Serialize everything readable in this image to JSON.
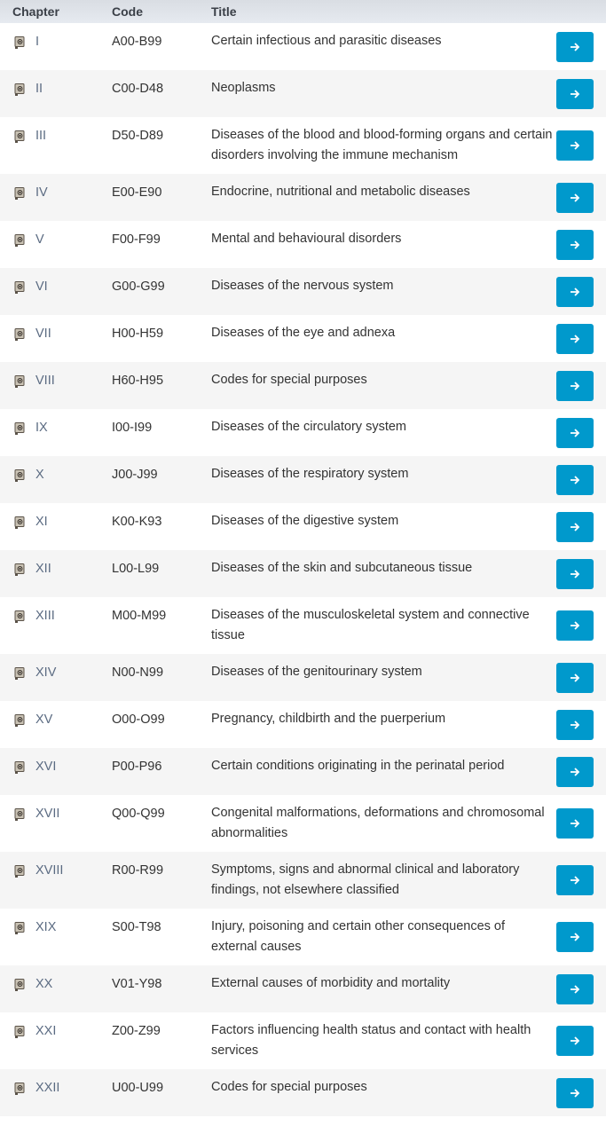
{
  "header": {
    "chapter": "Chapter",
    "code": "Code",
    "title": "Title"
  },
  "colors": {
    "button": "#0099cc",
    "chapter_text": "#5b6b82"
  },
  "rows": [
    {
      "chapter": "I",
      "code": "A00-B99",
      "title": "Certain infectious and parasitic diseases"
    },
    {
      "chapter": "II",
      "code": "C00-D48",
      "title": "Neoplasms"
    },
    {
      "chapter": "III",
      "code": "D50-D89",
      "title": "Diseases of the blood and blood-forming organs and certain disorders involving the immune mechanism"
    },
    {
      "chapter": "IV",
      "code": "E00-E90",
      "title": "Endocrine, nutritional and metabolic diseases"
    },
    {
      "chapter": "V",
      "code": "F00-F99",
      "title": "Mental and behavioural disorders"
    },
    {
      "chapter": "VI",
      "code": "G00-G99",
      "title": "Diseases of the nervous system"
    },
    {
      "chapter": "VII",
      "code": "H00-H59",
      "title": "Diseases of the eye and adnexa"
    },
    {
      "chapter": "VIII",
      "code": "H60-H95",
      "title": "Codes for special purposes"
    },
    {
      "chapter": "IX",
      "code": "I00-I99",
      "title": "Diseases of the circulatory system"
    },
    {
      "chapter": "X",
      "code": "J00-J99",
      "title": "Diseases of the respiratory system"
    },
    {
      "chapter": "XI",
      "code": "K00-K93",
      "title": "Diseases of the digestive system"
    },
    {
      "chapter": "XII",
      "code": "L00-L99",
      "title": "Diseases of the skin and subcutaneous tissue"
    },
    {
      "chapter": "XIII",
      "code": "M00-M99",
      "title": "Diseases of the musculoskeletal system and connective tissue"
    },
    {
      "chapter": "XIV",
      "code": "N00-N99",
      "title": "Diseases of the genitourinary system"
    },
    {
      "chapter": "XV",
      "code": "O00-O99",
      "title": "Pregnancy, childbirth and the puerperium"
    },
    {
      "chapter": "XVI",
      "code": "P00-P96",
      "title": "Certain conditions originating in the perinatal period"
    },
    {
      "chapter": "XVII",
      "code": "Q00-Q99",
      "title": "Congenital malformations, deformations and chromosomal abnormalities"
    },
    {
      "chapter": "XVIII",
      "code": "R00-R99",
      "title": "Symptoms, signs and abnormal clinical and laboratory findings, not elsewhere classified"
    },
    {
      "chapter": "XIX",
      "code": "S00-T98",
      "title": "Injury, poisoning and certain other consequences of external causes"
    },
    {
      "chapter": "XX",
      "code": "V01-Y98",
      "title": "External causes of morbidity and mortality"
    },
    {
      "chapter": "XXI",
      "code": "Z00-Z99",
      "title": "Factors influencing health status and contact with health services"
    },
    {
      "chapter": "XXII",
      "code": "U00-U99",
      "title": "Codes for special purposes"
    }
  ]
}
